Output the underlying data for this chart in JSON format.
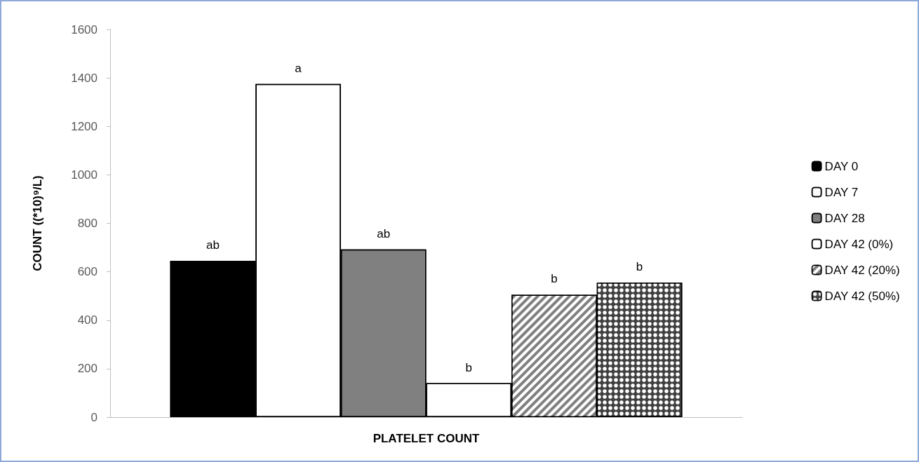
{
  "chart_data": {
    "type": "bar",
    "xlabel": "PLATELET COUNT",
    "ylabel": "COUNT ((*10)⁹/L)",
    "categories": [
      null
    ],
    "series": [
      {
        "name": "DAY 0",
        "color": "#000000",
        "values": [
          645
        ]
      },
      {
        "name": "DAY 7",
        "color": "#ffffff",
        "values": [
          1375
        ]
      },
      {
        "name": "DAY 28",
        "color": "#808080",
        "values": [
          692
        ]
      },
      {
        "name": "DAY 42 (0%)",
        "color": "#ffffff",
        "values": [
          140
        ]
      },
      {
        "name": "DAY 42 (20%)",
        "color": "#808080",
        "values": [
          505
        ]
      },
      {
        "name": "DAY 42 (50%)",
        "color": "#404040",
        "values": [
          555
        ]
      }
    ],
    "annotations": [
      "ab",
      "a",
      "ab",
      "b",
      "b",
      "b"
    ],
    "ylim": [
      0,
      1600
    ],
    "yticks": [
      0,
      200,
      400,
      600,
      800,
      1000,
      1200,
      1400,
      1600
    ],
    "grid": false,
    "legend": "right"
  }
}
